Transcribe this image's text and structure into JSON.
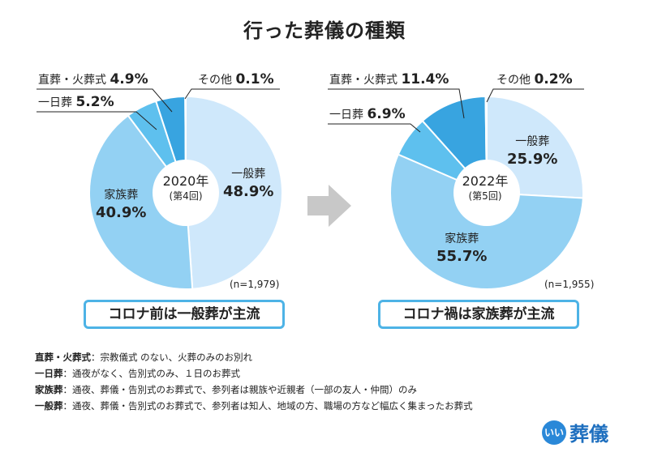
{
  "title": "行った葬儀の種類",
  "chart_data": [
    {
      "type": "pie",
      "year": "2020年",
      "round": "(第4回)",
      "n": "(n=1,979)",
      "slices": [
        {
          "name": "一般葬",
          "value": 48.9,
          "label": "48.9%",
          "color": "#cfe8fb"
        },
        {
          "name": "家族葬",
          "value": 40.9,
          "label": "40.9%",
          "color": "#93d1f3"
        },
        {
          "name": "一日葬",
          "value": 5.2,
          "label": "5.2%",
          "color": "#5ec0ee"
        },
        {
          "name": "直葬・火葬式",
          "value": 4.9,
          "label": "4.9%",
          "color": "#38a4e0"
        },
        {
          "name": "その他",
          "value": 0.1,
          "label": "0.1%",
          "color": "#1f7fc4"
        }
      ],
      "summary": "コロナ前は一般葬が主流"
    },
    {
      "type": "pie",
      "year": "2022年",
      "round": "(第5回)",
      "n": "(n=1,955)",
      "slices": [
        {
          "name": "一般葬",
          "value": 25.9,
          "label": "25.9%",
          "color": "#cfe8fb"
        },
        {
          "name": "家族葬",
          "value": 55.7,
          "label": "55.7%",
          "color": "#93d1f3"
        },
        {
          "name": "一日葬",
          "value": 6.9,
          "label": "6.9%",
          "color": "#5ec0ee"
        },
        {
          "name": "直葬・火葬式",
          "value": 11.4,
          "label": "11.4%",
          "color": "#38a4e0"
        },
        {
          "name": "その他",
          "value": 0.2,
          "label": "0.2%",
          "color": "#1f7fc4"
        }
      ],
      "summary": "コロナ禍は家族葬が主流"
    }
  ],
  "legend": [
    {
      "key": "直葬・火葬式",
      "text": "：宗教儀式 のない、火葬のみのお別れ"
    },
    {
      "key": "一日葬",
      "text": "：通夜がなく、告別式のみ、１日のお葬式"
    },
    {
      "key": "家族葬",
      "text": "：通夜、葬儀・告別式のお葬式で、参列者は親族や近親者（一部の友人・仲間）のみ"
    },
    {
      "key": "一般葬",
      "text": "：通夜、葬儀・告別式のお葬式で、参列者は知人、地域の方、職場の方など幅広く集まったお葬式"
    }
  ],
  "logo": {
    "mark": "いい",
    "name": "葬儀"
  }
}
